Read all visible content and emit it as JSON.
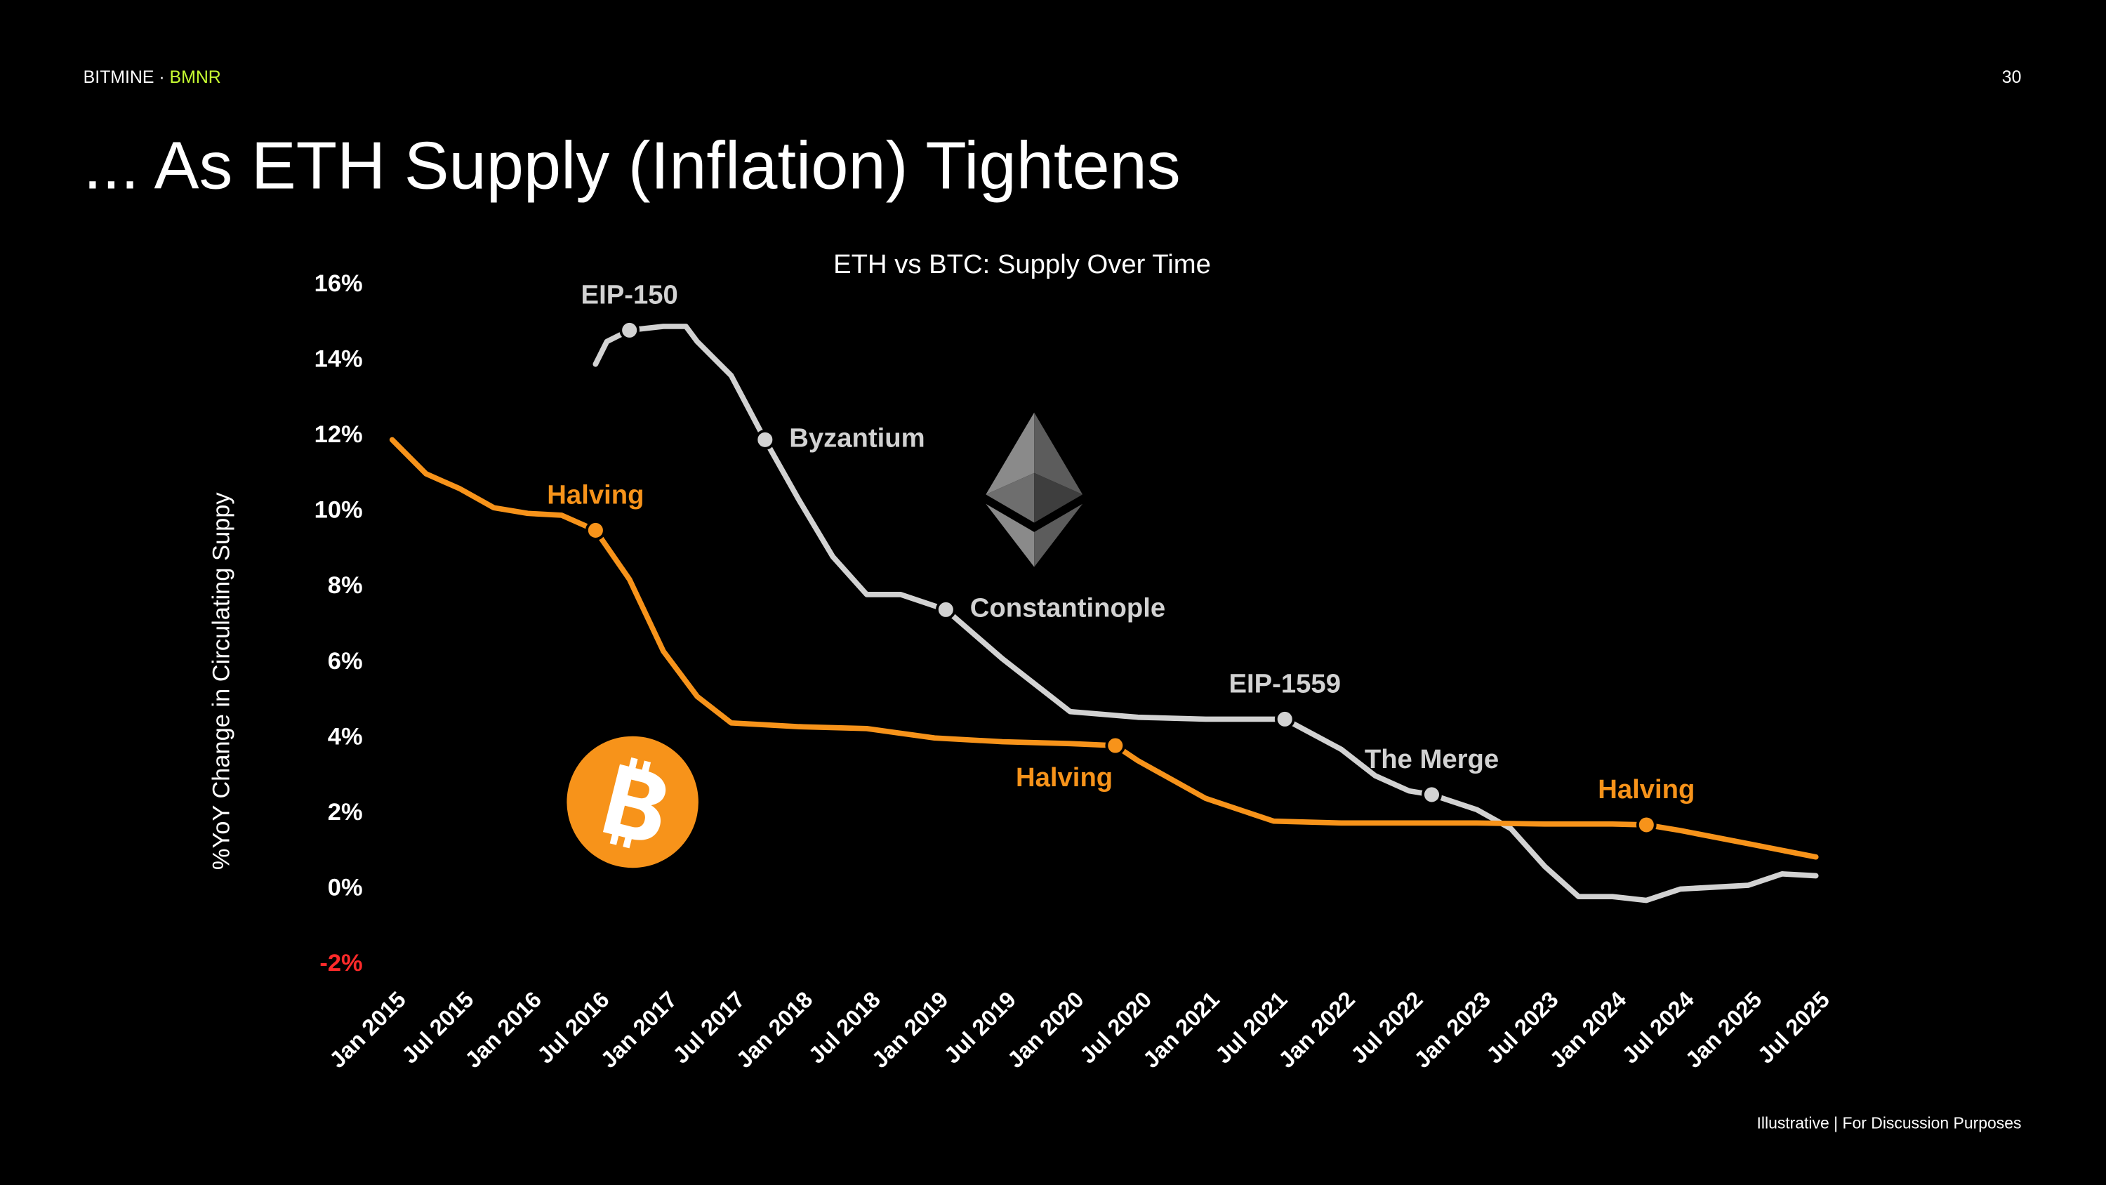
{
  "header": {
    "brand": "BITMINE",
    "separator": "·",
    "ticker": "BMNR",
    "page_number": "30",
    "title": "... As ETH Supply (Inflation) Tightens"
  },
  "footer": {
    "note": "Illustrative",
    "divider": "|",
    "purpose": "For Discussion Purposes"
  },
  "chart_data": {
    "type": "line",
    "title": "ETH vs BTC: Supply Over Time",
    "y_label": "%YoY Change in Circulating Suppy",
    "xlim": [
      "2015-01",
      "2025-07"
    ],
    "xticks": [
      {
        "value": "2015-01",
        "label": "Jan 2015"
      },
      {
        "value": "2015-07",
        "label": "Jul 2015"
      },
      {
        "value": "2016-01",
        "label": "Jan 2016"
      },
      {
        "value": "2016-07",
        "label": "Jul 2016"
      },
      {
        "value": "2017-01",
        "label": "Jan 2017"
      },
      {
        "value": "2017-07",
        "label": "Jul 2017"
      },
      {
        "value": "2018-01",
        "label": "Jan 2018"
      },
      {
        "value": "2018-07",
        "label": "Jul 2018"
      },
      {
        "value": "2019-01",
        "label": "Jan 2019"
      },
      {
        "value": "2019-07",
        "label": "Jul 2019"
      },
      {
        "value": "2020-01",
        "label": "Jan 2020"
      },
      {
        "value": "2020-07",
        "label": "Jul 2020"
      },
      {
        "value": "2021-01",
        "label": "Jan 2021"
      },
      {
        "value": "2021-07",
        "label": "Jul 2021"
      },
      {
        "value": "2022-01",
        "label": "Jan 2022"
      },
      {
        "value": "2022-07",
        "label": "Jul 2022"
      },
      {
        "value": "2023-01",
        "label": "Jan 2023"
      },
      {
        "value": "2023-07",
        "label": "Jul 2023"
      },
      {
        "value": "2024-01",
        "label": "Jan 2024"
      },
      {
        "value": "2024-07",
        "label": "Jul 2024"
      },
      {
        "value": "2025-01",
        "label": "Jan 2025"
      },
      {
        "value": "2025-07",
        "label": "Jul 2025"
      }
    ],
    "ylim": [
      -2,
      16
    ],
    "yticks": [
      {
        "value": 16,
        "label": "16%"
      },
      {
        "value": 14,
        "label": "14%"
      },
      {
        "value": 12,
        "label": "12%"
      },
      {
        "value": 10,
        "label": "10%"
      },
      {
        "value": 8,
        "label": "8%"
      },
      {
        "value": 6,
        "label": "6%"
      },
      {
        "value": 4,
        "label": "4%"
      },
      {
        "value": 2,
        "label": "2%"
      },
      {
        "value": 0,
        "label": "0%"
      },
      {
        "value": -2,
        "label": "-2%",
        "color": "#ff2a2a"
      }
    ],
    "grid": false,
    "series": [
      {
        "color": "#d2d2d2",
        "x": [
          "2016-07",
          "2016-08",
          "2016-10",
          "2017-01",
          "2017-03",
          "2017-04",
          "2017-07",
          "2017-10",
          "2018-01",
          "2018-04",
          "2018-07",
          "2018-10",
          "2019-02",
          "2019-07",
          "2020-01",
          "2020-07",
          "2021-01",
          "2021-07",
          "2021-08",
          "2022-01",
          "2022-04",
          "2022-07",
          "2022-09",
          "2023-01",
          "2023-04",
          "2023-07",
          "2023-10",
          "2024-01",
          "2024-04",
          "2024-07",
          "2025-01",
          "2025-04",
          "2025-07"
        ],
        "values": [
          13.9,
          14.5,
          14.8,
          14.9,
          14.9,
          14.5,
          13.6,
          11.9,
          10.3,
          8.8,
          7.8,
          7.8,
          7.4,
          6.1,
          4.7,
          4.55,
          4.5,
          4.5,
          4.5,
          3.7,
          3.0,
          2.6,
          2.5,
          2.1,
          1.6,
          0.6,
          -0.2,
          -0.2,
          -0.3,
          0.0,
          0.1,
          0.4,
          0.35
        ]
      },
      {
        "color": "#f7931a",
        "x": [
          "2015-01",
          "2015-04",
          "2015-07",
          "2015-10",
          "2016-01",
          "2016-04",
          "2016-07",
          "2016-10",
          "2017-01",
          "2017-04",
          "2017-07",
          "2017-10",
          "2018-01",
          "2018-07",
          "2019-01",
          "2019-07",
          "2020-01",
          "2020-05",
          "2020-07",
          "2021-01",
          "2021-07",
          "2022-01",
          "2022-07",
          "2023-01",
          "2023-07",
          "2024-01",
          "2024-04",
          "2024-07",
          "2025-01",
          "2025-07"
        ],
        "values": [
          11.9,
          11.0,
          10.6,
          10.1,
          9.95,
          9.9,
          9.5,
          8.2,
          6.3,
          5.1,
          4.4,
          4.35,
          4.3,
          4.25,
          4.0,
          3.9,
          3.85,
          3.8,
          3.4,
          2.4,
          1.8,
          1.75,
          1.75,
          1.75,
          1.72,
          1.72,
          1.7,
          1.55,
          1.2,
          0.85
        ]
      }
    ],
    "annotations": [
      {
        "text": "EIP-150",
        "x": "2016-10",
        "y": 14.8,
        "color": "#d2d2d2",
        "position": "above"
      },
      {
        "text": "Byzantium",
        "x": "2017-10",
        "y": 11.9,
        "color": "#d2d2d2",
        "position": "right"
      },
      {
        "text": "Constantinople",
        "x": "2019-02",
        "y": 7.4,
        "color": "#d2d2d2",
        "position": "right"
      },
      {
        "text": "EIP-1559",
        "x": "2021-08",
        "y": 4.5,
        "color": "#d2d2d2",
        "position": "above"
      },
      {
        "text": "The Merge",
        "x": "2022-09",
        "y": 2.5,
        "color": "#d2d2d2",
        "position": "above"
      },
      {
        "text": "Halving",
        "x": "2016-07",
        "y": 9.5,
        "color": "#f7931a",
        "position": "above"
      },
      {
        "text": "Halving",
        "x": "2020-05",
        "y": 3.8,
        "color": "#f7931a",
        "position": "below"
      },
      {
        "text": "Halving",
        "x": "2024-04",
        "y": 1.7,
        "color": "#f7931a",
        "position": "above"
      }
    ]
  }
}
